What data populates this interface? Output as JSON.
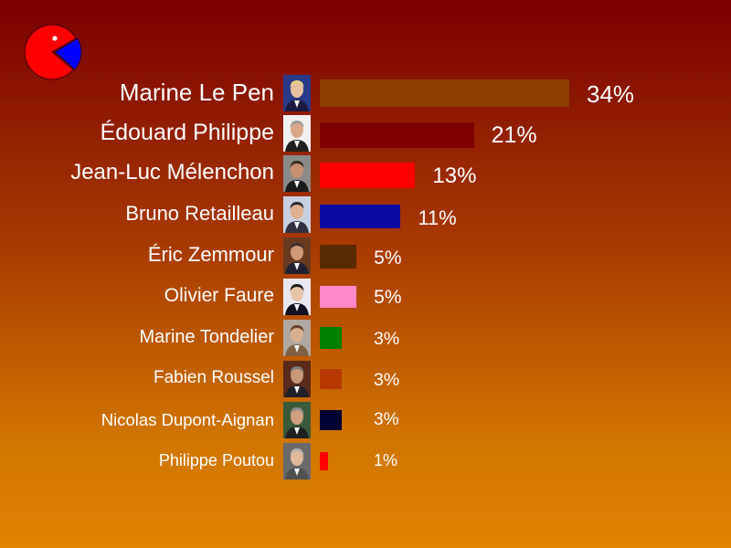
{
  "chart_data": {
    "type": "bar",
    "orientation": "horizontal",
    "categories": [
      "Marine Le Pen",
      "Édouard Philippe",
      "Jean-Luc Mélenchon",
      "Bruno Retailleau",
      "Éric Zemmour",
      "Olivier Faure",
      "Marine Tondelier",
      "Fabien Roussel",
      "Nicolas Dupont-Aignan",
      "Philippe Poutou"
    ],
    "values": [
      34,
      21,
      13,
      11,
      5,
      5,
      3,
      3,
      3,
      1
    ],
    "value_labels": [
      "34%",
      "21%",
      "13%",
      "11%",
      "5%",
      "5%",
      "3%",
      "3%",
      "3%",
      "1%"
    ],
    "colors": [
      "#8b3e00",
      "#7f0000",
      "#ff0000",
      "#0a0aa0",
      "#5a2a00",
      "#ff88c8",
      "#008000",
      "#b83800",
      "#000033",
      "#ff0000"
    ],
    "unit": "%",
    "grid": false,
    "legend": "none"
  },
  "logo": {
    "icon": "pacman-pie-icon",
    "colors": {
      "body": "#ff0000",
      "wedge": "#0000ff",
      "eye": "#ffffff"
    }
  },
  "candidate_photo_icon": "portrait-photo-icon"
}
